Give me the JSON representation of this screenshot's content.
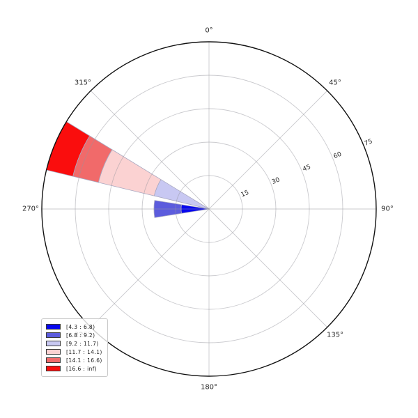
{
  "chart_data": {
    "type": "windrose",
    "title": "",
    "r_max": 75,
    "r_ticks": [
      {
        "value": 15,
        "label": "15"
      },
      {
        "value": 30,
        "label": "30"
      },
      {
        "value": 45,
        "label": "45"
      },
      {
        "value": 60,
        "label": "60"
      },
      {
        "value": 75,
        "label": "75"
      }
    ],
    "r_label_angle_deg": 67.5,
    "r_label_rotation_deg": -22.5,
    "angular_ticks": [
      {
        "deg": 0,
        "label": "0°"
      },
      {
        "deg": 45,
        "label": "45°"
      },
      {
        "deg": 90,
        "label": "90°"
      },
      {
        "deg": 135,
        "label": "135°"
      },
      {
        "deg": 180,
        "label": "180°"
      },
      {
        "deg": 225,
        "label": "225°"
      },
      {
        "deg": 270,
        "label": "270°"
      },
      {
        "deg": 315,
        "label": "315°"
      }
    ],
    "bins": [
      {
        "label": "[4.3 : 6.8)",
        "color": "#0707ee"
      },
      {
        "label": "[6.8 : 9.2)",
        "color": "#5c5cdd"
      },
      {
        "label": "[9.2 : 11.7)",
        "color": "#c8c8f2"
      },
      {
        "label": "[11.7 : 14.1)",
        "color": "#fbd2d2"
      },
      {
        "label": "[14.1 : 16.6)",
        "color": "#f16a6a"
      },
      {
        "label": "[16.6 : inf)",
        "color": "#fa0d0d"
      }
    ],
    "sectors": [
      {
        "direction_deg": 270,
        "width_deg": 18,
        "segments": [
          {
            "bin_index": 0,
            "r0": 0,
            "r1": 12.5
          },
          {
            "bin_index": 1,
            "r0": 12.5,
            "r1": 24.7
          }
        ]
      },
      {
        "direction_deg": 292.5,
        "width_deg": 18,
        "segments": [
          {
            "bin_index": 2,
            "r0": 0,
            "r1": 25.3
          },
          {
            "bin_index": 3,
            "r0": 25.3,
            "r1": 51.0
          },
          {
            "bin_index": 4,
            "r0": 51.0,
            "r1": 62.8
          },
          {
            "bin_index": 5,
            "r0": 62.8,
            "r1": 75.0
          }
        ]
      }
    ],
    "legend_position": "bottom-left",
    "grid": true,
    "style": {
      "grid_color": "rgba(150,150,158,0.5)",
      "outline_color": "#111111",
      "wedge_edge_color": "#a8a8c0",
      "label_color": "#262626"
    }
  }
}
